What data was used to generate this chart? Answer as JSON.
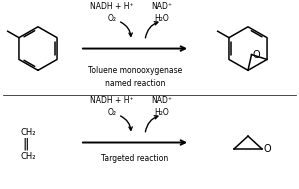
{
  "bg_color": "#ffffff",
  "line_color": "#000000",
  "text_color": "#000000",
  "reaction1": {
    "label_above_left": "NADH + H⁺",
    "label_above_left2": "O₂",
    "label_above_right": "NAD⁺",
    "label_above_right2": "H₂O",
    "label_below": "Toluene monooxygenase\nnamed reaction"
  },
  "reaction2": {
    "label_above_left": "NADH + H⁺",
    "label_above_left2": "O₂",
    "label_above_right": "NAD⁺",
    "label_above_right2": "H₂O",
    "label_below": "Targeted reaction"
  },
  "figsize": [
    2.99,
    1.89
  ],
  "dpi": 100
}
